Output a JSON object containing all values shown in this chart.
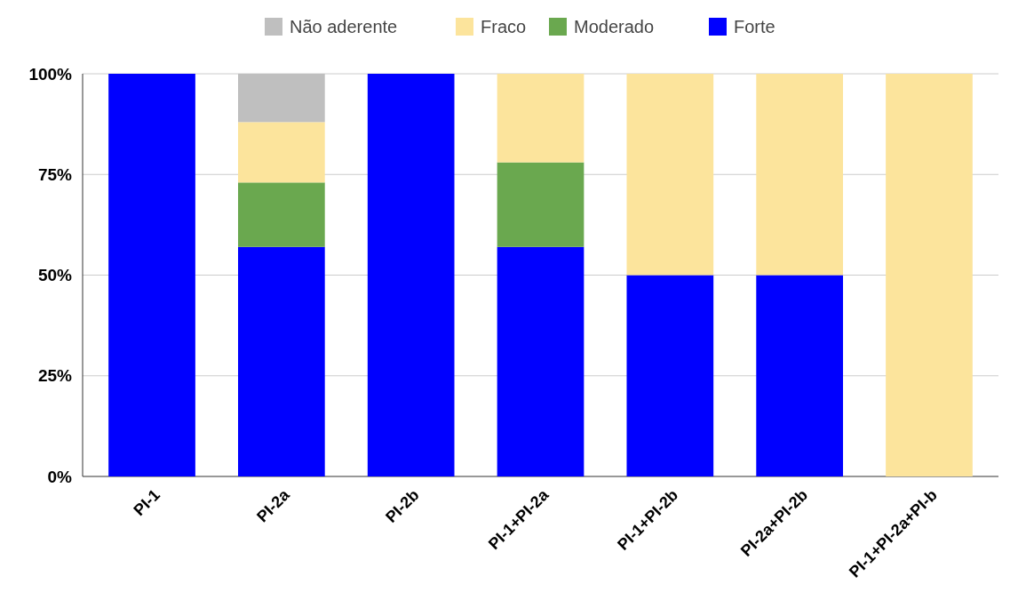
{
  "chart_data": {
    "type": "bar",
    "stacked": true,
    "categories": [
      "PI-1",
      "PI-2a",
      "PI-2b",
      "PI-1+PI-2a",
      "PI-1+PI-2b",
      "PI-2a+PI-2b",
      "PI-1+PI-2a+PI-b"
    ],
    "series": [
      {
        "name": "Forte",
        "color": "#0000ff",
        "values": [
          100,
          57,
          100,
          57,
          50,
          50,
          0
        ]
      },
      {
        "name": "Moderado",
        "color": "#6aa84f",
        "values": [
          0,
          16,
          0,
          21,
          0,
          0,
          0
        ]
      },
      {
        "name": "Fraco",
        "color": "#fce49c",
        "values": [
          0,
          15,
          0,
          22,
          50,
          50,
          100
        ]
      },
      {
        "name": "Não aderente",
        "color": "#bfbfbf",
        "values": [
          0,
          12,
          0,
          0,
          0,
          0,
          0
        ]
      }
    ],
    "ylim": [
      0,
      100
    ],
    "yticks": [
      {
        "value": 0,
        "label": "0%"
      },
      {
        "value": 25,
        "label": "25%"
      },
      {
        "value": 50,
        "label": "50%"
      },
      {
        "value": 75,
        "label": "75%"
      },
      {
        "value": 100,
        "label": "100%"
      }
    ],
    "grid": "y",
    "legend": "top"
  }
}
